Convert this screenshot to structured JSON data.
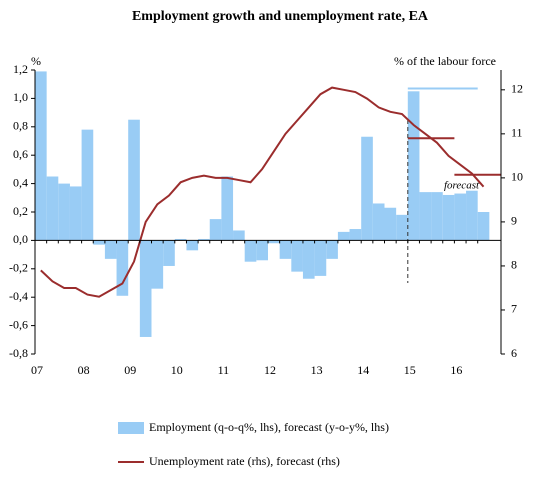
{
  "chart_data": {
    "type": "bar_line",
    "title": "Employment growth and unemployment rate, EA",
    "y_label": "%",
    "y2_label": "% of the labour  force",
    "categories": [
      "07",
      null,
      null,
      null,
      "08",
      null,
      null,
      null,
      "09",
      null,
      null,
      null,
      "10",
      null,
      null,
      null,
      "11",
      null,
      null,
      null,
      "12",
      null,
      null,
      null,
      "13",
      null,
      null,
      null,
      "14",
      null,
      null,
      null,
      "15",
      null,
      null,
      null,
      "16",
      null,
      null
    ],
    "series": [
      {
        "name": "Employment (q-o-q%, lhs), forecast (y-o-y%, lhs)",
        "color": "#99ccf5",
        "kind": "bar",
        "axis": "y",
        "values": [
          1.19,
          0.45,
          0.4,
          0.38,
          0.78,
          -0.03,
          -0.13,
          -0.39,
          0.85,
          -0.68,
          -0.34,
          -0.18,
          0.01,
          -0.07,
          0.01,
          0.15,
          0.45,
          0.07,
          -0.15,
          -0.14,
          -0.02,
          -0.13,
          -0.22,
          -0.27,
          -0.25,
          -0.13,
          0.06,
          0.08,
          0.73,
          0.26,
          0.23,
          0.18,
          1.05,
          0.34,
          0.34,
          0.32,
          0.33,
          0.35,
          0.2
        ]
      },
      {
        "name": "Unemployment rate (rhs), forecast (rhs)",
        "color": "#9b2d2d",
        "kind": "line",
        "axis": "y2",
        "values": [
          7.9,
          7.65,
          7.5,
          7.5,
          7.35,
          7.3,
          7.45,
          7.6,
          8.1,
          9.0,
          9.4,
          9.6,
          9.9,
          10.0,
          10.05,
          10.0,
          10.0,
          9.95,
          9.9,
          10.2,
          10.6,
          11.0,
          11.3,
          11.6,
          11.9,
          12.05,
          12.0,
          11.95,
          11.8,
          11.6,
          11.5,
          11.45,
          11.2,
          11.0,
          10.8,
          10.5,
          10.3,
          10.1,
          9.8
        ]
      }
    ],
    "forecast_lines": [
      {
        "axis": "y",
        "color": "#99ccf5",
        "value": 1.07,
        "from_category": 32,
        "to_category": 38
      },
      {
        "axis": "y2",
        "color": "#9b2d2d",
        "value": 10.9,
        "from_category": 32,
        "to_category": 36
      },
      {
        "axis": "y2",
        "color": "#9b2d2d",
        "value": 10.07,
        "from_category": 36,
        "to_category": 40
      }
    ],
    "forecast_start_category": 32,
    "annotation": "forecast",
    "ylim": [
      -0.8,
      1.2
    ],
    "yticks": [
      {
        "value": -0.8,
        "label": "-0,8"
      },
      {
        "value": -0.6,
        "label": "-0,6"
      },
      {
        "value": -0.4,
        "label": "-0,4"
      },
      {
        "value": -0.2,
        "label": "-0,2"
      },
      {
        "value": 0,
        "label": "0,0"
      },
      {
        "value": 0.2,
        "label": "0,2"
      },
      {
        "value": 0.4,
        "label": "0,4"
      },
      {
        "value": 0.6,
        "label": "0,6"
      },
      {
        "value": 0.8,
        "label": "0,8"
      },
      {
        "value": 1.0,
        "label": "1,0"
      },
      {
        "value": 1.2,
        "label": "1,2"
      }
    ],
    "y2lim": [
      6,
      12.45
    ],
    "y2ticks": [
      6,
      7,
      8,
      9,
      10,
      11,
      12
    ],
    "grid": false
  }
}
